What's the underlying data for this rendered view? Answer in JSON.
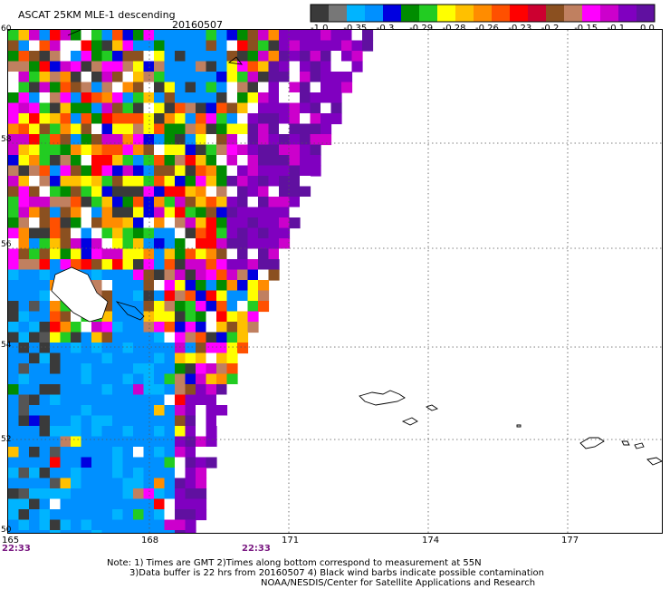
{
  "header": {
    "title": "ASCAT 25KM MLE-1 descending",
    "date": "20160507"
  },
  "colorbar": {
    "colors": [
      "#3a3a3a",
      "#777777",
      "#00b4ff",
      "#0090ff",
      "#0000e0",
      "#008c00",
      "#22cc22",
      "#ffff00",
      "#ffc000",
      "#ff8c00",
      "#ff5000",
      "#ff0000",
      "#cc0030",
      "#8b5020",
      "#c08060",
      "#ff00ff",
      "#cc00cc",
      "#8000c0",
      "#6010a0"
    ],
    "labels": [
      "-1.0",
      "-0.35",
      "-0.3",
      "-0.29",
      "-0.28",
      "-0.26",
      "-0.23",
      "-0.2",
      "-0.15",
      "-0.1",
      "0.0"
    ]
  },
  "map": {
    "lat_labels": [
      "60",
      "58",
      "56",
      "54",
      "52",
      "50"
    ],
    "lon_labels": [
      "165",
      "168",
      "171",
      "174",
      "177"
    ],
    "time_labels": [
      "22:33",
      "22:33"
    ]
  },
  "notes": [
    "Note: 1) Times are GMT 2)Times along bottom correspond to measurement at 55N",
    "3)Data buffer is 22 hrs from 20160507 4) Black wind barbs indicate possible contamination",
    "NOAA/NESDIS/Center for Satellite Applications and Research"
  ],
  "palettes": {
    "mixed": [
      "#ff0000",
      "#ff8c00",
      "#ffc000",
      "#ffff00",
      "#0000e0",
      "#0090ff",
      "#008c00",
      "#22cc22",
      "#8b5020",
      "#c08060",
      "#ff00ff",
      "#cc00cc",
      "#ffffff",
      "#ff5000",
      "#3a3a3a"
    ],
    "purple": [
      "#8000c0",
      "#6010a0",
      "#cc00cc",
      "#8000c0",
      "#6010a0",
      "#ffffff"
    ],
    "blue": [
      "#0090ff",
      "#0090ff",
      "#0090ff",
      "#0090ff",
      "#00b4ff"
    ],
    "dark": [
      "#3a3a3a",
      "#3a3a3a",
      "#555555",
      "#0090ff"
    ]
  }
}
